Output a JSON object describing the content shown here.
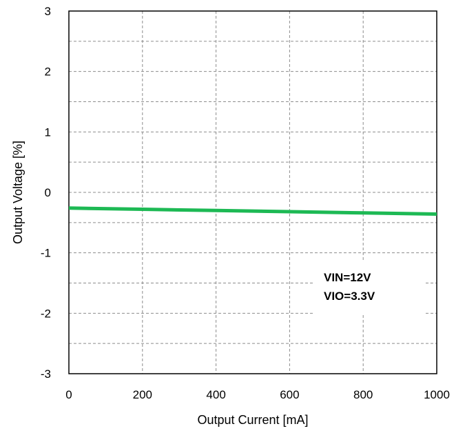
{
  "chart_data": {
    "type": "line",
    "title": "",
    "xlabel": "Output Current [mA]",
    "ylabel": "Output Voltage [%]",
    "xlim": [
      0,
      1000
    ],
    "ylim": [
      -3,
      3
    ],
    "x_ticks": [
      0,
      200,
      400,
      600,
      800,
      1000
    ],
    "y_ticks": [
      -3,
      -2,
      -1,
      0,
      1,
      2,
      3
    ],
    "y_minor_step": 0.5,
    "grid": true,
    "grid_style": "dashed",
    "series": [
      {
        "color": "#1db954",
        "x": [
          0,
          200,
          400,
          600,
          800,
          1000
        ],
        "y": [
          -0.26,
          -0.28,
          -0.3,
          -0.32,
          -0.34,
          -0.36
        ]
      }
    ],
    "annotations": [
      {
        "text": "VIN=12V",
        "line": 1
      },
      {
        "text": "VIO=3.3V",
        "line": 2
      }
    ]
  }
}
